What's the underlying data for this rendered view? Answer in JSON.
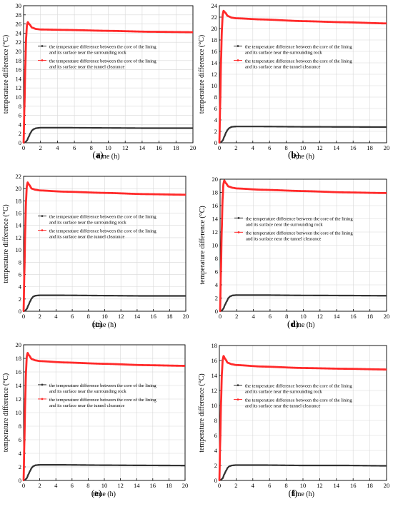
{
  "figure": {
    "legend": {
      "series1_line1": "the temperature difference between the core of the lining",
      "series1_line2": "and its surface near the surrounding rock",
      "series2_line1": "the temperature difference between the core of the lining",
      "series2_line2": "and its surface near the tunnel clearance"
    }
  },
  "colors": {
    "rock": "#333333",
    "clearance": "#ff2a2a",
    "axis": "#000000",
    "grid": "#d8d8d8"
  },
  "chart_data": [
    {
      "type": "line",
      "label": "(a)",
      "xlabel": "time (h)",
      "ylabel": "temperature difference (°C)",
      "xlim": [
        0,
        20
      ],
      "ylim": [
        0,
        30
      ],
      "xticks": [
        0,
        2,
        4,
        6,
        8,
        10,
        12,
        14,
        16,
        18,
        20
      ],
      "yticks": [
        0,
        2,
        4,
        6,
        8,
        10,
        12,
        14,
        16,
        18,
        20,
        22,
        24,
        26,
        28,
        30
      ],
      "grid": true,
      "legend_position": "center-right",
      "series": [
        {
          "name": "the temperature difference between the core of the lining and its surface near the surrounding rock",
          "x": [
            0,
            0.2,
            0.4,
            0.6,
            0.8,
            1.0,
            1.2,
            1.5,
            2,
            3,
            5,
            10,
            15,
            20
          ],
          "y": [
            0,
            0.1,
            0.5,
            1.3,
            2.1,
            2.7,
            3.0,
            3.2,
            3.3,
            3.3,
            3.3,
            3.25,
            3.2,
            3.2
          ]
        },
        {
          "name": "the temperature difference between the core of the lining and its surface near the tunnel clearance",
          "x": [
            0,
            0.1,
            0.2,
            0.3,
            0.4,
            0.5,
            0.7,
            1.0,
            1.5,
            2,
            5,
            10,
            15,
            20
          ],
          "y": [
            0,
            8.0,
            16.5,
            23.0,
            25.8,
            26.4,
            25.9,
            25.2,
            24.9,
            24.8,
            24.7,
            24.5,
            24.3,
            24.2
          ]
        }
      ]
    },
    {
      "type": "line",
      "label": "(b)",
      "xlabel": "time (h)",
      "ylabel": "temperature difference (°C)",
      "xlim": [
        0,
        20
      ],
      "ylim": [
        0,
        24
      ],
      "xticks": [
        0,
        2,
        4,
        6,
        8,
        10,
        12,
        14,
        16,
        18,
        20
      ],
      "yticks": [
        0,
        2,
        4,
        6,
        8,
        10,
        12,
        14,
        16,
        18,
        20,
        22,
        24
      ],
      "grid": true,
      "legend_position": "center-right",
      "series": [
        {
          "name": "the temperature difference between the core of the lining and its surface near the surrounding rock",
          "x": [
            0,
            0.2,
            0.4,
            0.6,
            0.8,
            1.0,
            1.2,
            1.5,
            2,
            3,
            5,
            10,
            15,
            20
          ],
          "y": [
            0,
            0.1,
            0.4,
            1.1,
            1.8,
            2.3,
            2.6,
            2.8,
            2.85,
            2.85,
            2.85,
            2.8,
            2.78,
            2.75
          ]
        },
        {
          "name": "the temperature difference between the core of the lining and its surface near the tunnel clearance",
          "x": [
            0,
            0.1,
            0.2,
            0.3,
            0.4,
            0.5,
            0.7,
            1.0,
            1.5,
            2,
            5,
            10,
            15,
            20
          ],
          "y": [
            0,
            7.0,
            14.5,
            19.8,
            22.5,
            23.1,
            22.8,
            22.2,
            21.9,
            21.8,
            21.6,
            21.3,
            21.1,
            20.9
          ]
        }
      ]
    },
    {
      "type": "line",
      "label": "(c)",
      "xlabel": "time (h)",
      "ylabel": "temperature difference (°C)",
      "xlim": [
        0,
        20
      ],
      "ylim": [
        0,
        22
      ],
      "xticks": [
        0,
        2,
        4,
        6,
        8,
        10,
        12,
        14,
        16,
        18,
        20
      ],
      "yticks": [
        0,
        2,
        4,
        6,
        8,
        10,
        12,
        14,
        16,
        18,
        20,
        22
      ],
      "grid": true,
      "legend_position": "center-right",
      "series": [
        {
          "name": "the temperature difference between the core of the lining and its surface near the surrounding rock",
          "x": [
            0,
            0.2,
            0.4,
            0.6,
            0.8,
            1.0,
            1.2,
            1.5,
            2,
            3,
            5,
            10,
            15,
            20
          ],
          "y": [
            0,
            0.1,
            0.4,
            1.0,
            1.6,
            2.1,
            2.4,
            2.55,
            2.6,
            2.6,
            2.6,
            2.55,
            2.5,
            2.5
          ]
        },
        {
          "name": "the temperature difference between the core of the lining and its surface near the tunnel clearance",
          "x": [
            0,
            0.1,
            0.2,
            0.3,
            0.4,
            0.5,
            0.7,
            1.0,
            1.5,
            2,
            5,
            10,
            15,
            20
          ],
          "y": [
            0,
            6.5,
            13.0,
            18.0,
            20.4,
            21.0,
            20.6,
            20.0,
            19.8,
            19.7,
            19.5,
            19.3,
            19.1,
            19.0
          ]
        }
      ]
    },
    {
      "type": "line",
      "label": "(d)",
      "xlabel": "time (h)",
      "ylabel": "temperature difference (°C)",
      "xlim": [
        0,
        20
      ],
      "ylim": [
        0,
        20
      ],
      "xticks": [
        0,
        2,
        4,
        6,
        8,
        10,
        12,
        14,
        16,
        18,
        20
      ],
      "yticks": [
        0,
        2,
        4,
        6,
        8,
        10,
        12,
        14,
        16,
        18,
        20
      ],
      "grid": true,
      "legend_position": "center-right",
      "series": [
        {
          "name": "the temperature difference between the core of the lining and its surface near the surrounding rock",
          "x": [
            0,
            0.2,
            0.4,
            0.6,
            0.8,
            1.0,
            1.2,
            1.5,
            2,
            3,
            5,
            10,
            15,
            20
          ],
          "y": [
            0,
            0.1,
            0.4,
            1.0,
            1.5,
            2.0,
            2.25,
            2.4,
            2.45,
            2.45,
            2.45,
            2.4,
            2.38,
            2.35
          ]
        },
        {
          "name": "the temperature difference between the core of the lining and its surface near the tunnel clearance",
          "x": [
            0,
            0.1,
            0.2,
            0.3,
            0.4,
            0.5,
            0.7,
            1.0,
            1.5,
            2,
            5,
            10,
            15,
            20
          ],
          "y": [
            0,
            6.0,
            12.3,
            17.0,
            19.3,
            19.8,
            19.4,
            18.9,
            18.7,
            18.6,
            18.4,
            18.2,
            18.0,
            17.9
          ]
        }
      ]
    },
    {
      "type": "line",
      "label": "(e)",
      "xlabel": "time (h)",
      "ylabel": "temperature difference (°C)",
      "xlim": [
        0,
        20
      ],
      "ylim": [
        0,
        20
      ],
      "xticks": [
        0,
        2,
        4,
        6,
        8,
        10,
        12,
        14,
        16,
        18,
        20
      ],
      "yticks": [
        0,
        2,
        4,
        6,
        8,
        10,
        12,
        14,
        16,
        18,
        20
      ],
      "grid": true,
      "legend_position": "center-right",
      "series": [
        {
          "name": "the temperature difference between the core of the lining and its surface near the surrounding rock",
          "x": [
            0,
            0.2,
            0.4,
            0.6,
            0.8,
            1.0,
            1.2,
            1.5,
            2,
            3,
            5,
            10,
            15,
            20
          ],
          "y": [
            0,
            0.1,
            0.35,
            0.9,
            1.4,
            1.85,
            2.1,
            2.25,
            2.3,
            2.3,
            2.3,
            2.25,
            2.22,
            2.2
          ]
        },
        {
          "name": "the temperature difference between the core of the lining and its surface near the tunnel clearance",
          "x": [
            0,
            0.1,
            0.2,
            0.3,
            0.4,
            0.5,
            0.7,
            1.0,
            1.5,
            2,
            5,
            10,
            15,
            20
          ],
          "y": [
            0,
            5.8,
            11.7,
            16.1,
            18.3,
            18.8,
            18.4,
            17.9,
            17.7,
            17.6,
            17.4,
            17.2,
            17.0,
            16.9
          ]
        }
      ]
    },
    {
      "type": "line",
      "label": "(f)",
      "xlabel": "time (h)",
      "ylabel": "temperature difference (°C)",
      "xlim": [
        0,
        20
      ],
      "ylim": [
        0,
        18
      ],
      "xticks": [
        0,
        2,
        4,
        6,
        8,
        10,
        12,
        14,
        16,
        18,
        20
      ],
      "yticks": [
        0,
        2,
        4,
        6,
        8,
        10,
        12,
        14,
        16,
        18
      ],
      "grid": true,
      "legend_position": "center-right",
      "series": [
        {
          "name": "the temperature difference between the core of the lining and its surface near the surrounding rock",
          "x": [
            0,
            0.2,
            0.4,
            0.6,
            0.8,
            1.0,
            1.2,
            1.5,
            2,
            3,
            5,
            10,
            15,
            20
          ],
          "y": [
            0,
            0.1,
            0.3,
            0.85,
            1.3,
            1.7,
            1.9,
            2.0,
            2.05,
            2.05,
            2.05,
            2.0,
            2.0,
            1.95
          ]
        },
        {
          "name": "the temperature difference between the core of the lining and its surface near the tunnel clearance",
          "x": [
            0,
            0.1,
            0.2,
            0.3,
            0.4,
            0.5,
            0.7,
            1.0,
            1.5,
            2,
            5,
            10,
            15,
            20
          ],
          "y": [
            0,
            5.2,
            10.4,
            14.3,
            16.1,
            16.6,
            16.2,
            15.7,
            15.5,
            15.4,
            15.2,
            15.0,
            14.9,
            14.8
          ]
        }
      ]
    }
  ]
}
